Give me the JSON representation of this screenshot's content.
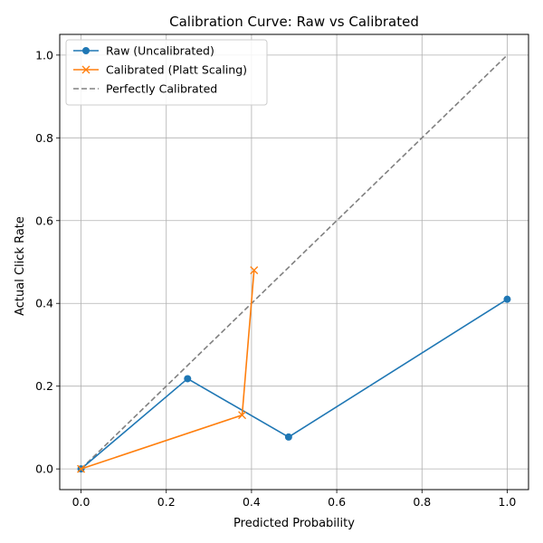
{
  "chart_data": {
    "type": "line",
    "title": "Calibration Curve: Raw vs Calibrated",
    "xlabel": "Predicted Probability",
    "ylabel": "Actual Click Rate",
    "xlim": [
      -0.05,
      1.05
    ],
    "ylim": [
      -0.05,
      1.05
    ],
    "xticks": [
      0.0,
      0.2,
      0.4,
      0.6,
      0.8,
      1.0
    ],
    "yticks": [
      0.0,
      0.2,
      0.4,
      0.6,
      0.8,
      1.0
    ],
    "xtick_labels": [
      "0.0",
      "0.2",
      "0.4",
      "0.6",
      "0.8",
      "1.0"
    ],
    "ytick_labels": [
      "0.0",
      "0.2",
      "0.4",
      "0.6",
      "0.8",
      "1.0"
    ],
    "grid": true,
    "legend_position": "top-left",
    "series": [
      {
        "name": "Raw (Uncalibrated)",
        "color": "#1f77b4",
        "marker": "circle",
        "linestyle": "solid",
        "x": [
          0.0,
          0.25,
          0.487,
          1.0
        ],
        "y": [
          0.0,
          0.218,
          0.077,
          0.41
        ]
      },
      {
        "name": "Calibrated (Platt Scaling)",
        "color": "#ff7f0e",
        "marker": "x",
        "linestyle": "solid",
        "x": [
          0.0,
          0.378,
          0.406
        ],
        "y": [
          0.0,
          0.13,
          0.48
        ]
      },
      {
        "name": "Perfectly Calibrated",
        "color": "#808080",
        "marker": "none",
        "linestyle": "dashed",
        "x": [
          0.0,
          1.0
        ],
        "y": [
          0.0,
          1.0
        ]
      }
    ]
  }
}
